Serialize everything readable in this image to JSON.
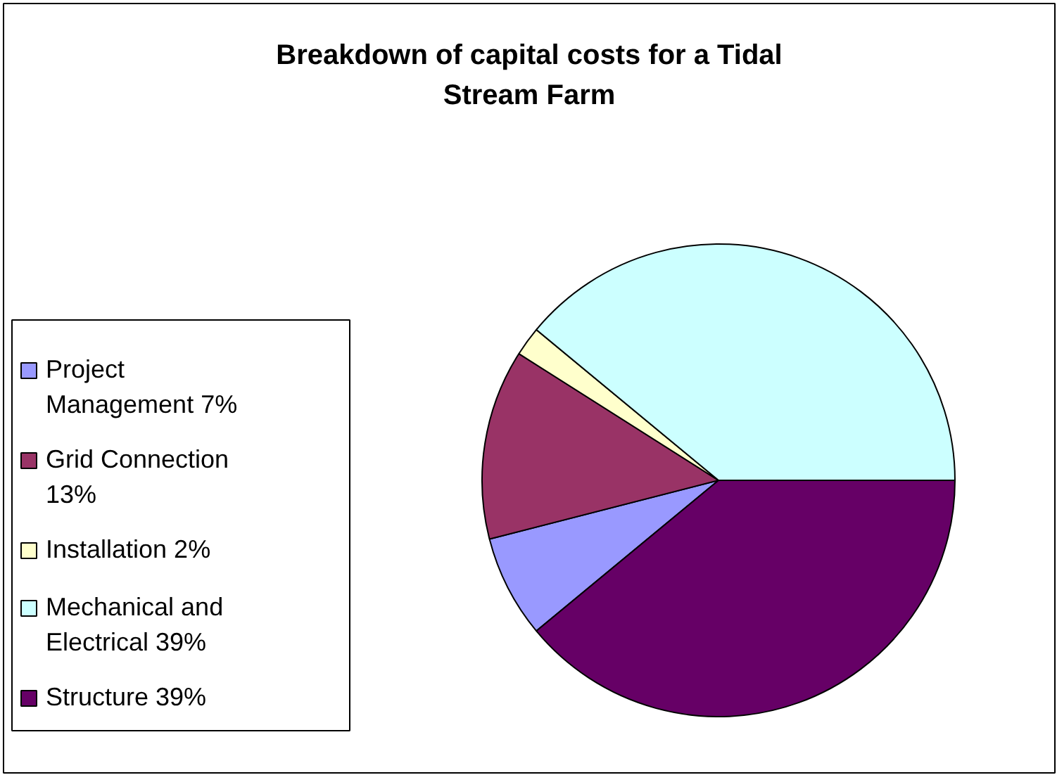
{
  "chart_data": {
    "type": "pie",
    "title": "Breakdown of capital costs for a Tidal Stream Farm",
    "categories": [
      "Project Management 7%",
      "Grid Connection 13%",
      "Installation 2%",
      "Mechanical and Electrical 39%",
      "Structure 39%"
    ],
    "values": [
      7,
      13,
      2,
      39,
      39
    ],
    "colors": [
      "#9999ff",
      "#993366",
      "#ffffcc",
      "#ccffff",
      "#660066"
    ],
    "legend": "left"
  }
}
